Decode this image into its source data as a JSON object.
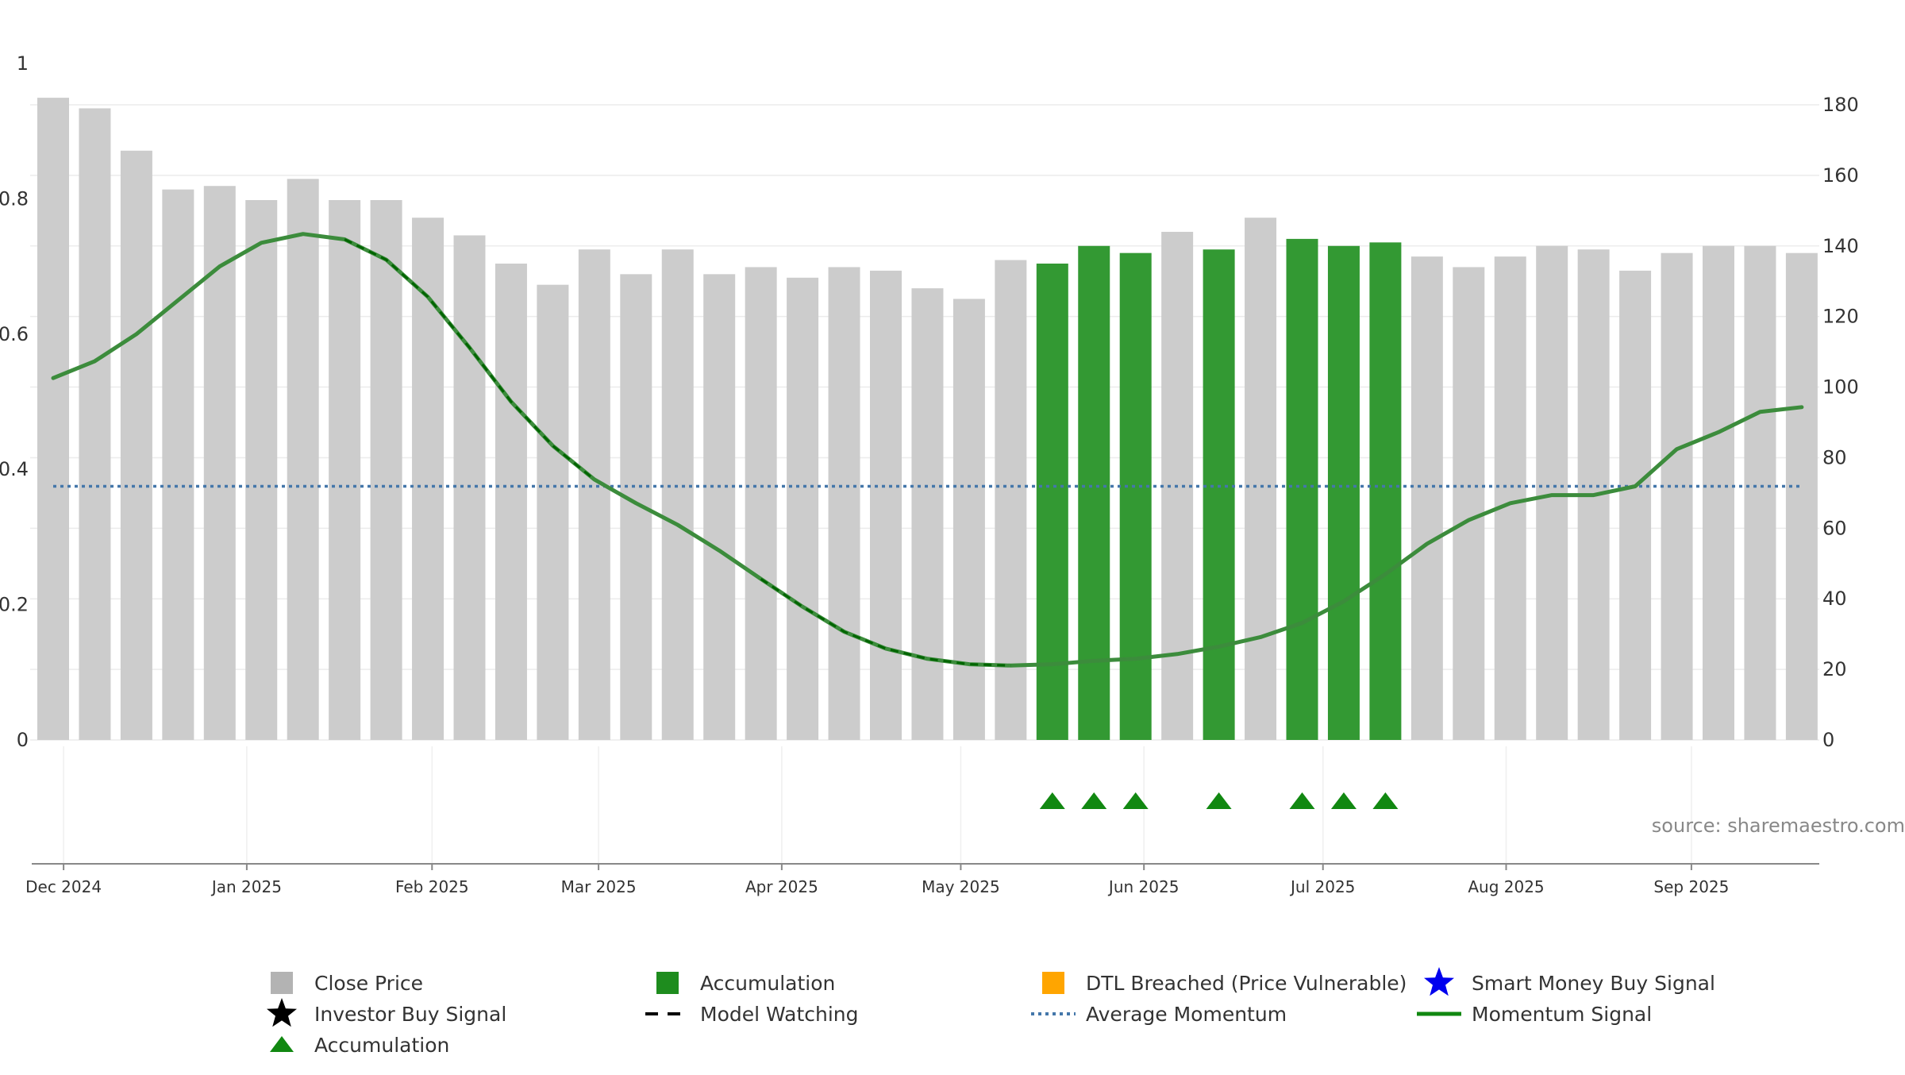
{
  "source_text": "source: sharemaestro.com",
  "colors": {
    "close_price": "#cccccc",
    "accumulation_bar": "#339933",
    "momentum_line": "#3c8c3c",
    "momentum_dash": "#006400",
    "average_momentum": "#4477aa",
    "triangle": "#118811",
    "legend_close": "#b3b3b3",
    "legend_accumulation": "#1e8c1e",
    "legend_dtl": "#ffa500",
    "legend_smart_money": "#0000ee",
    "axis_text": "#333333",
    "source_text": "#888888"
  },
  "chart_data": {
    "type": "bar",
    "left_axis": {
      "ylim": [
        0,
        1
      ],
      "ticks": [
        "0",
        "0.2",
        "0.4",
        "0.6",
        "0.8",
        "1"
      ]
    },
    "right_axis": {
      "ylim": [
        0,
        180
      ],
      "ticks": [
        "0",
        "20",
        "40",
        "60",
        "80",
        "100",
        "120",
        "140",
        "160",
        "180"
      ]
    },
    "x_tick_labels": [
      "Dec 2024",
      "Jan 2025",
      "Feb 2025",
      "Mar 2025",
      "Apr 2025",
      "May 2025",
      "Jun 2025",
      "Jul 2025",
      "Aug 2025",
      "Sep 2025"
    ],
    "x_tick_weeks": [
      0.25,
      4.65,
      9.1,
      13.1,
      17.5,
      21.8,
      26.2,
      30.5,
      34.9,
      39.35
    ],
    "grid": true,
    "legend_position": "bottom",
    "series": [
      {
        "name": "Close Price",
        "kind": "bar",
        "axis": "right",
        "values": [
          182,
          179,
          167,
          156,
          157,
          153,
          159,
          153,
          153,
          148,
          143,
          135,
          129,
          139,
          132,
          139,
          132,
          134,
          131,
          134,
          133,
          128,
          125,
          136,
          135,
          140,
          138,
          144,
          139,
          148,
          142,
          140,
          141,
          137,
          134,
          137,
          140,
          139,
          133,
          138,
          140,
          140,
          138
        ],
        "accumulation_weeks": [
          24,
          25,
          26,
          28,
          30,
          31,
          32
        ]
      },
      {
        "name": "Momentum Signal",
        "kind": "line",
        "axis": "left",
        "values": [
          0.535,
          0.56,
          0.6,
          0.65,
          0.7,
          0.735,
          0.748,
          0.74,
          0.71,
          0.655,
          0.58,
          0.5,
          0.435,
          0.385,
          0.35,
          0.318,
          0.28,
          0.238,
          0.197,
          0.16,
          0.135,
          0.12,
          0.112,
          0.11,
          0.112,
          0.117,
          0.12,
          0.127,
          0.138,
          0.152,
          0.173,
          0.205,
          0.245,
          0.29,
          0.325,
          0.35,
          0.362,
          0.362,
          0.375,
          0.43,
          0.455,
          0.485,
          0.492
        ],
        "dashed_segments": [
          [
            7,
            13
          ],
          [
            17,
            23
          ]
        ]
      },
      {
        "name": "Average Momentum",
        "kind": "hline",
        "axis": "left",
        "value": 0.375
      },
      {
        "name": "Accumulation",
        "kind": "triangle-markers",
        "weeks": [
          24,
          25,
          26,
          28,
          30,
          31,
          32
        ]
      }
    ]
  },
  "legend": [
    {
      "label": "Close Price",
      "symbol": "gray-square"
    },
    {
      "label": "Accumulation",
      "symbol": "green-square"
    },
    {
      "label": "DTL Breached (Price Vulnerable)",
      "symbol": "orange-square"
    },
    {
      "label": "Smart Money Buy Signal",
      "symbol": "blue-star-icon"
    },
    {
      "label": "Investor Buy Signal",
      "symbol": "black-star-icon"
    },
    {
      "label": "Model Watching",
      "symbol": "dashed-line"
    },
    {
      "label": "Average Momentum",
      "symbol": "dotted-line"
    },
    {
      "label": "Momentum Signal",
      "symbol": "solid-line"
    },
    {
      "label": "Accumulation",
      "symbol": "green-triangle-icon"
    }
  ]
}
